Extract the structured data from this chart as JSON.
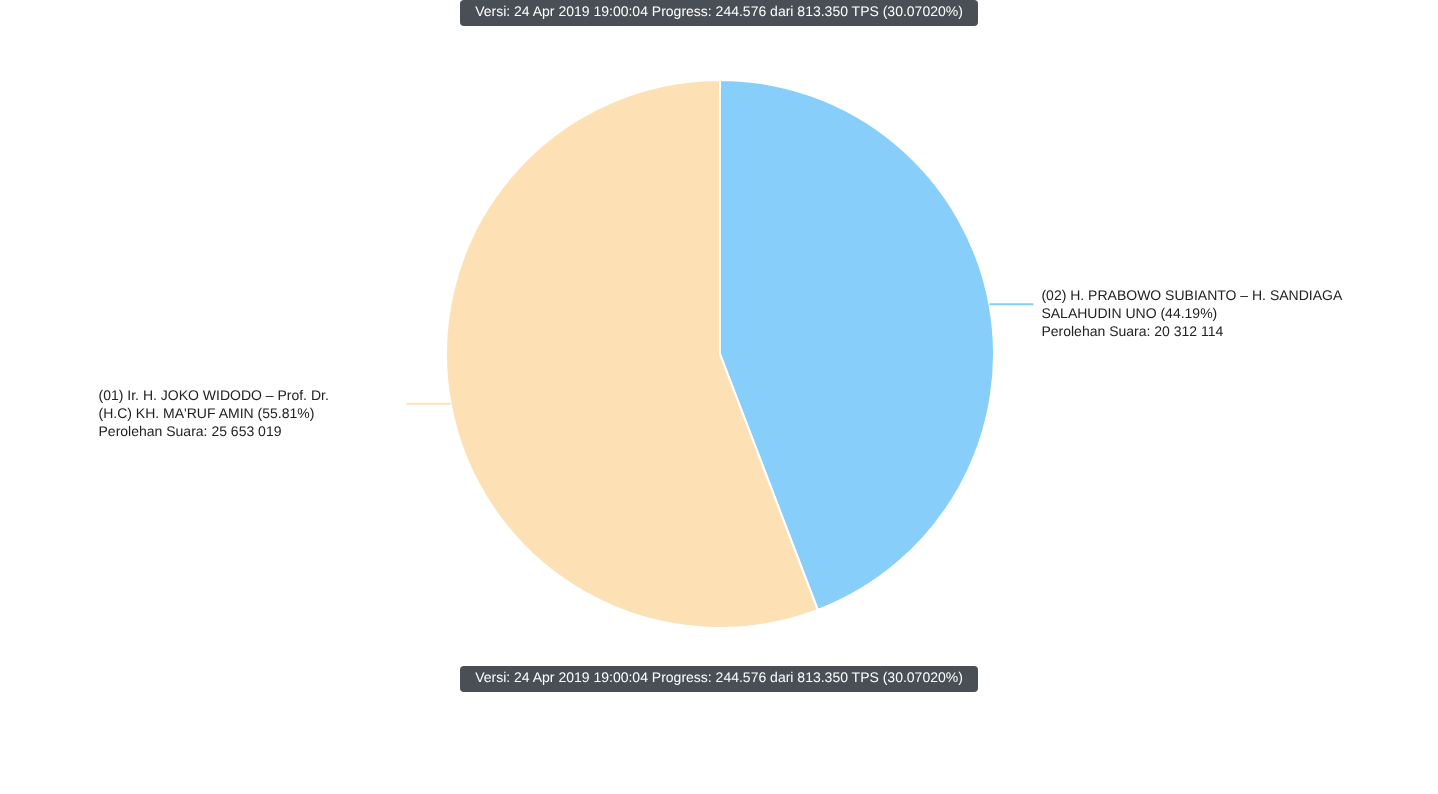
{
  "chart_data": {
    "type": "pie",
    "subtitle": "Versi: 24 Apr 2019 19:00:04 Progress: 244.576 dari 813.350 TPS (30.07020%)",
    "annotations": [
      "Versi: 24 Apr 2019 19:00:04 Progress: 244.576 dari 813.350 TPS (30.07020%)"
    ],
    "categories": [
      "(02) H. PRABOWO SUBIANTO – H. SANDIAGA SALAHUDIN UNO (44.19%)",
      "(01) Ir. H. JOKO WIDODO – Prof. Dr. (H.C) KH. MA'RUF AMIN (55.81%)"
    ],
    "values": [
      20312114,
      25653019
    ],
    "value_labels": [
      "Perolehan Suara: 20 312 114",
      "Perolehan Suara: 25 653 019"
    ],
    "colors": [
      "#87cefa",
      "#fde1b4"
    ]
  }
}
